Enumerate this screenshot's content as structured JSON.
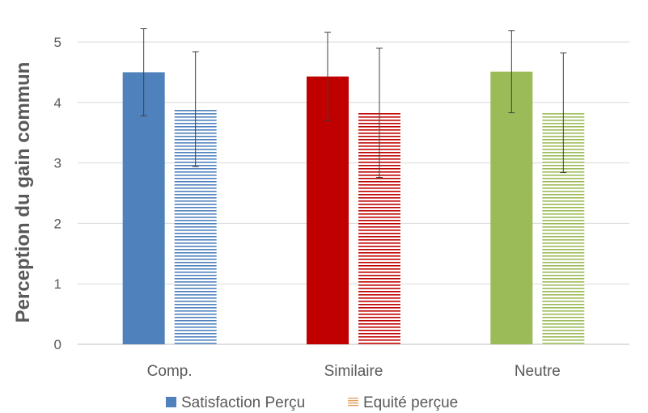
{
  "chart_data": {
    "type": "bar",
    "title": "",
    "xlabel": "",
    "ylabel": "Perception du gain commun",
    "ylim": [
      0,
      5
    ],
    "yticks": [
      0,
      1,
      2,
      3,
      4,
      5
    ],
    "grid": true,
    "legend_position": "bottom",
    "categories": [
      "Comp.",
      "Similaire",
      "Neutre"
    ],
    "category_colors": [
      "#4f81bd",
      "#c00000",
      "#9bbb59"
    ],
    "series": [
      {
        "name": "Satisfaction Perçu",
        "style": "solid",
        "values": [
          4.5,
          4.43,
          4.51
        ],
        "error": [
          0.72,
          0.73,
          0.68
        ]
      },
      {
        "name": "Equité perçue",
        "style": "horizontal-hatch",
        "values": [
          3.89,
          3.83,
          3.83
        ],
        "error": [
          0.95,
          1.07,
          0.99
        ]
      }
    ],
    "legend_swatch_colors": [
      "#4f81bd",
      "#e6a15c"
    ]
  }
}
